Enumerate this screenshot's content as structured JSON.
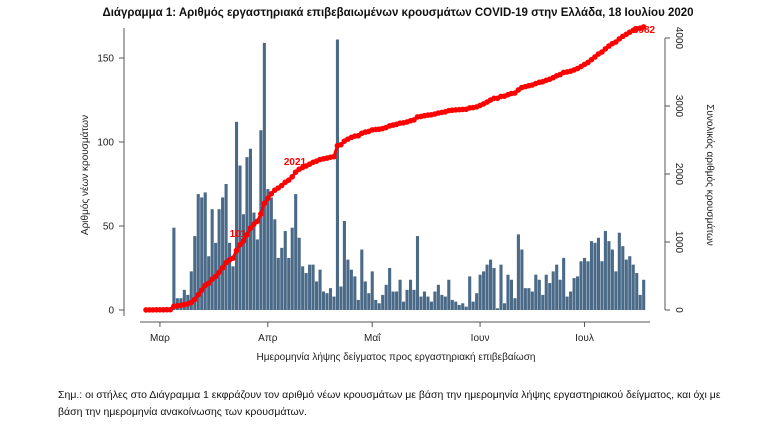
{
  "chart_data": {
    "type": "bar+line",
    "title": "Διάγραμμα 1: Αριθμός εργαστηριακά επιβεβαιωμένων κρουσμάτων COVID-19 στην Ελλάδα, 18 Ιουλίου 2020",
    "xlabel": "Ημερομηνία λήψης δείγματος προς εργαστηριακή επιβεβαίωση",
    "ylabel_left": "Αριθμός νέων κρουσμάτων",
    "ylabel_right": "Συνολικός αριθμός κρουσμάτων",
    "start_date": "2020-02-26",
    "x_ticks": [
      {
        "label": "Μαρ",
        "day": 4
      },
      {
        "label": "Απρ",
        "day": 35
      },
      {
        "label": "Μαΐ",
        "day": 65
      },
      {
        "label": "Ιουν",
        "day": 96
      },
      {
        "label": "Ιουλ",
        "day": 126
      }
    ],
    "ylim_left": [
      0,
      170
    ],
    "yticks_left": [
      "0",
      "50",
      "100",
      "150"
    ],
    "ylim_right": [
      0,
      4000
    ],
    "yticks_right": [
      "0",
      "1000",
      "2000",
      "3000",
      "4000"
    ],
    "series": [
      {
        "name": "Νέα κρούσματα",
        "type": "bar",
        "color": "#4a6a88",
        "values": [
          1,
          1,
          0,
          1,
          0,
          0,
          1,
          1,
          49,
          7,
          7,
          12,
          9,
          23,
          44,
          69,
          67,
          70,
          32,
          60,
          40,
          60,
          67,
          75,
          40,
          26,
          112,
          86,
          57,
          91,
          96,
          58,
          42,
          107,
          159,
          72,
          67,
          54,
          31,
          37,
          47,
          31,
          49,
          69,
          43,
          26,
          22,
          27,
          27,
          17,
          24,
          11,
          10,
          13,
          8,
          161,
          14,
          53,
          30,
          24,
          20,
          6,
          36,
          17,
          10,
          23,
          6,
          4,
          9,
          15,
          25,
          11,
          11,
          18,
          5,
          12,
          18,
          12,
          44,
          8,
          11,
          8,
          5,
          11,
          15,
          9,
          8,
          18,
          6,
          5,
          3,
          4,
          2,
          20,
          5,
          10,
          21,
          23,
          27,
          30,
          25,
          1,
          27,
          4,
          21,
          18,
          7,
          45,
          36,
          13,
          13,
          11,
          21,
          18,
          9,
          21,
          16,
          23,
          27,
          18,
          31,
          8,
          11,
          19,
          20,
          29,
          31,
          29,
          41,
          40,
          43,
          29,
          47,
          41,
          36,
          23,
          46,
          38,
          30,
          32,
          27,
          22,
          9,
          18
        ]
      },
      {
        "name": "Συνολικά κρούσματα",
        "type": "line",
        "color": "#ff0000",
        "axis": "right"
      }
    ],
    "annotations": [
      {
        "text": "101",
        "day": 23
      },
      {
        "text": "2021",
        "day": 42
      },
      {
        "text": "3982",
        "day": 143
      }
    ]
  },
  "note": "Σημ.: οι στήλες στο Διάγραμμα 1 εκφράζουν τον αριθμό νέων κρουσμάτων με βάση την ημερομηνία λήψης εργαστηριακού δείγματος, και όχι με βάση την ημερομηνία ανακοίνωσης των κρουσμάτων."
}
